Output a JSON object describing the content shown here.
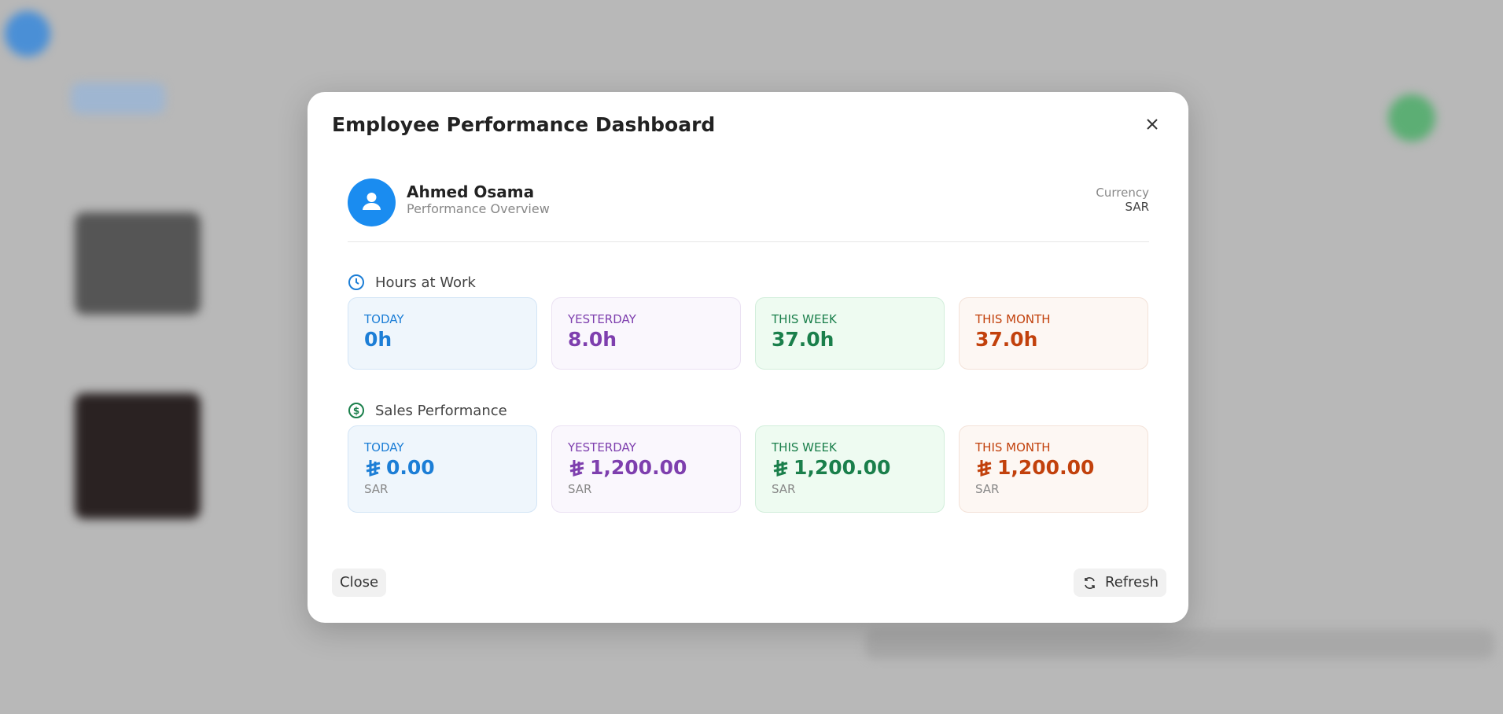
{
  "dialog": {
    "title": "Employee Performance Dashboard",
    "employee": {
      "name": "Ahmed Osama",
      "subtitle": "Performance Overview",
      "currency_label": "Currency",
      "currency": "SAR"
    },
    "sections": [
      {
        "title": "Hours at Work",
        "cards": [
          {
            "label": "TODAY",
            "value": "0h"
          },
          {
            "label": "YESTERDAY",
            "value": "8.0h"
          },
          {
            "label": "THIS WEEK",
            "value": "37.0h"
          },
          {
            "label": "THIS MONTH",
            "value": "37.0h"
          }
        ]
      },
      {
        "title": "Sales Performance",
        "cards": [
          {
            "label": "TODAY",
            "value": "0.00",
            "unit": "SAR"
          },
          {
            "label": "YESTERDAY",
            "value": "1,200.00",
            "unit": "SAR"
          },
          {
            "label": "THIS WEEK",
            "value": "1,200.00",
            "unit": "SAR"
          },
          {
            "label": "THIS MONTH",
            "value": "1,200.00",
            "unit": "SAR"
          }
        ]
      }
    ],
    "buttons": {
      "close": "Close",
      "refresh": "Refresh"
    }
  }
}
